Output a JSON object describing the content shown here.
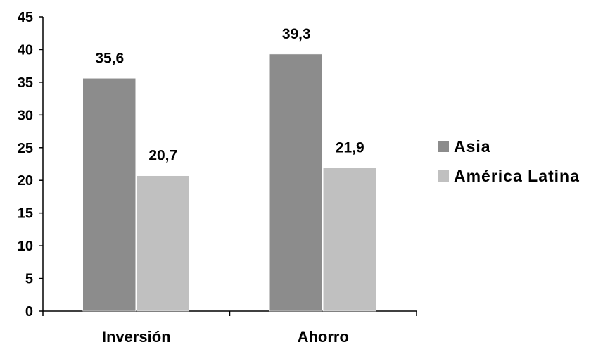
{
  "chart_data": {
    "type": "bar",
    "categories": [
      "Inversión",
      "Ahorro"
    ],
    "series": [
      {
        "name": "Asia",
        "values": [
          35.6,
          39.3
        ],
        "labels": [
          "35,6",
          "39,3"
        ],
        "color": "#8c8c8c"
      },
      {
        "name": "América Latina",
        "values": [
          20.7,
          21.9
        ],
        "labels": [
          "20,7",
          "21,9"
        ],
        "color": "#c0c0c0"
      }
    ],
    "yticks": [
      0,
      5,
      10,
      15,
      20,
      25,
      30,
      35,
      40,
      45
    ],
    "ylim": [
      0,
      45
    ],
    "grid": false,
    "legend": "right"
  }
}
